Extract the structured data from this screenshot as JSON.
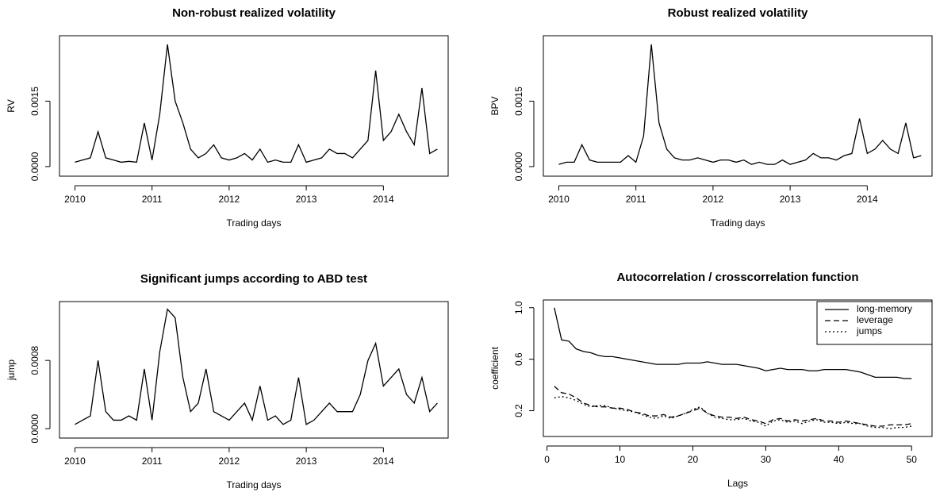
{
  "chart_data": [
    {
      "type": "line",
      "title": "Non-robust realized volatility",
      "xlabel": "Trading days",
      "ylabel": "RV",
      "x": [
        2010,
        2010.1,
        2010.2,
        2010.3,
        2010.4,
        2010.5,
        2010.6,
        2010.7,
        2010.8,
        2010.9,
        2011,
        2011.1,
        2011.2,
        2011.3,
        2011.4,
        2011.5,
        2011.6,
        2011.7,
        2011.8,
        2011.9,
        2012,
        2012.1,
        2012.2,
        2012.3,
        2012.4,
        2012.5,
        2012.6,
        2012.7,
        2012.8,
        2012.9,
        2013,
        2013.1,
        2013.2,
        2013.3,
        2013.4,
        2013.5,
        2013.6,
        2013.7,
        2013.8,
        2013.9,
        2014,
        2014.1,
        2014.2,
        2014.3,
        2014.4,
        2014.5,
        2014.6,
        2014.7
      ],
      "series": [
        {
          "color": "#000000",
          "dash": "solid",
          "values": [
            0.0001,
            0.00015,
            0.0002,
            0.0008,
            0.0002,
            0.00015,
            0.0001,
            0.00012,
            0.0001,
            0.001,
            0.00015,
            0.0012,
            0.0028,
            0.0015,
            0.001,
            0.0004,
            0.0002,
            0.0003,
            0.0005,
            0.0002,
            0.00015,
            0.0002,
            0.0003,
            0.00015,
            0.0004,
            0.0001,
            0.00015,
            0.0001,
            0.0001,
            0.0005,
            0.0001,
            0.00015,
            0.0002,
            0.0004,
            0.0003,
            0.0003,
            0.0002,
            0.0004,
            0.0006,
            0.0022,
            0.0006,
            0.0008,
            0.0012,
            0.0008,
            0.0005,
            0.0018,
            0.0003,
            0.0004
          ]
        }
      ],
      "xlim": [
        2009.8,
        2014.84
      ],
      "ylim": [
        -0.00022,
        0.003
      ],
      "xticks": [
        2010,
        2011,
        2012,
        2013,
        2014
      ],
      "yticks": [
        {
          "value": 0,
          "label": "0.0000"
        },
        {
          "value": 0.0015,
          "label": "0.0015"
        }
      ]
    },
    {
      "type": "line",
      "title": "Robust realized volatility",
      "xlabel": "Trading days",
      "ylabel": "BPV",
      "x": [
        2010,
        2010.1,
        2010.2,
        2010.3,
        2010.4,
        2010.5,
        2010.6,
        2010.7,
        2010.8,
        2010.9,
        2011,
        2011.1,
        2011.2,
        2011.3,
        2011.4,
        2011.5,
        2011.6,
        2011.7,
        2011.8,
        2011.9,
        2012,
        2012.1,
        2012.2,
        2012.3,
        2012.4,
        2012.5,
        2012.6,
        2012.7,
        2012.8,
        2012.9,
        2013,
        2013.1,
        2013.2,
        2013.3,
        2013.4,
        2013.5,
        2013.6,
        2013.7,
        2013.8,
        2013.9,
        2014,
        2014.1,
        2014.2,
        2014.3,
        2014.4,
        2014.5,
        2014.6,
        2014.7
      ],
      "series": [
        {
          "color": "#000000",
          "dash": "solid",
          "values": [
            5e-05,
            0.0001,
            0.0001,
            0.0005,
            0.00015,
            0.0001,
            0.0001,
            0.0001,
            0.0001,
            0.00025,
            0.0001,
            0.0007,
            0.0028,
            0.001,
            0.0004,
            0.0002,
            0.00015,
            0.00015,
            0.0002,
            0.00015,
            0.0001,
            0.00015,
            0.00015,
            0.0001,
            0.00015,
            5e-05,
            0.0001,
            5e-05,
            5e-05,
            0.00015,
            5e-05,
            0.0001,
            0.00015,
            0.0003,
            0.0002,
            0.0002,
            0.00015,
            0.00025,
            0.0003,
            0.0011,
            0.0003,
            0.0004,
            0.0006,
            0.0004,
            0.0003,
            0.001,
            0.0002,
            0.00025
          ]
        }
      ],
      "xlim": [
        2009.8,
        2014.84
      ],
      "ylim": [
        -0.00022,
        0.003
      ],
      "xticks": [
        2010,
        2011,
        2012,
        2013,
        2014
      ],
      "yticks": [
        {
          "value": 0,
          "label": "0.0000"
        },
        {
          "value": 0.0015,
          "label": "0.0015"
        }
      ]
    },
    {
      "type": "line",
      "title": "Significant jumps according to ABD test",
      "xlabel": "Trading days",
      "ylabel": "jump",
      "x": [
        2010,
        2010.1,
        2010.2,
        2010.3,
        2010.4,
        2010.5,
        2010.6,
        2010.7,
        2010.8,
        2010.9,
        2011,
        2011.1,
        2011.2,
        2011.3,
        2011.4,
        2011.5,
        2011.6,
        2011.7,
        2011.8,
        2011.9,
        2012,
        2012.1,
        2012.2,
        2012.3,
        2012.4,
        2012.5,
        2012.6,
        2012.7,
        2012.8,
        2012.9,
        2013,
        2013.1,
        2013.2,
        2013.3,
        2013.4,
        2013.5,
        2013.6,
        2013.7,
        2013.8,
        2013.9,
        2014,
        2014.1,
        2014.2,
        2014.3,
        2014.4,
        2014.5,
        2014.6,
        2014.7
      ],
      "series": [
        {
          "color": "#000000",
          "dash": "solid",
          "values": [
            5e-05,
            0.0001,
            0.00015,
            0.0008,
            0.0002,
            0.0001,
            0.0001,
            0.00015,
            0.0001,
            0.0007,
            0.0001,
            0.0009,
            0.0014,
            0.0013,
            0.0006,
            0.0002,
            0.0003,
            0.0007,
            0.0002,
            0.00015,
            0.0001,
            0.0002,
            0.0003,
            0.0001,
            0.0005,
            0.0001,
            0.00015,
            5e-05,
            0.0001,
            0.0006,
            5e-05,
            0.0001,
            0.0002,
            0.0003,
            0.0002,
            0.0002,
            0.0002,
            0.0004,
            0.0008,
            0.001,
            0.0005,
            0.0006,
            0.0007,
            0.0004,
            0.0003,
            0.0006,
            0.0002,
            0.0003
          ]
        }
      ],
      "xlim": [
        2009.8,
        2014.84
      ],
      "ylim": [
        -0.00011,
        0.00149
      ],
      "xticks": [
        2010,
        2011,
        2012,
        2013,
        2014
      ],
      "yticks": [
        {
          "value": 0,
          "label": "0.0000"
        },
        {
          "value": 0.0008,
          "label": "0.0008"
        }
      ]
    },
    {
      "type": "line",
      "title": "Autocorrelation / crosscorrelation function",
      "xlabel": "Lags",
      "ylabel": "coefficient",
      "x": [
        1,
        2,
        3,
        4,
        5,
        6,
        7,
        8,
        9,
        10,
        11,
        12,
        13,
        14,
        15,
        16,
        17,
        18,
        19,
        20,
        21,
        22,
        23,
        24,
        25,
        26,
        27,
        28,
        29,
        30,
        31,
        32,
        33,
        34,
        35,
        36,
        37,
        38,
        39,
        40,
        41,
        42,
        43,
        44,
        45,
        46,
        47,
        48,
        49,
        50
      ],
      "series": [
        {
          "name": "long-memory",
          "color": "#000000",
          "dash": "solid",
          "values": [
            1.0,
            0.75,
            0.74,
            0.68,
            0.66,
            0.65,
            0.63,
            0.62,
            0.62,
            0.61,
            0.6,
            0.59,
            0.58,
            0.57,
            0.56,
            0.56,
            0.56,
            0.56,
            0.57,
            0.57,
            0.57,
            0.58,
            0.57,
            0.56,
            0.56,
            0.56,
            0.55,
            0.54,
            0.53,
            0.51,
            0.52,
            0.53,
            0.52,
            0.52,
            0.52,
            0.51,
            0.51,
            0.52,
            0.52,
            0.52,
            0.52,
            0.51,
            0.5,
            0.48,
            0.46,
            0.46,
            0.46,
            0.46,
            0.45,
            0.45
          ]
        },
        {
          "name": "leverage",
          "color": "#000000",
          "dash": "dashed",
          "values": [
            0.39,
            0.34,
            0.33,
            0.3,
            0.26,
            0.24,
            0.23,
            0.23,
            0.22,
            0.22,
            0.21,
            0.19,
            0.18,
            0.16,
            0.16,
            0.17,
            0.15,
            0.16,
            0.18,
            0.2,
            0.22,
            0.18,
            0.16,
            0.15,
            0.15,
            0.14,
            0.15,
            0.13,
            0.12,
            0.1,
            0.13,
            0.14,
            0.12,
            0.13,
            0.12,
            0.13,
            0.14,
            0.12,
            0.12,
            0.11,
            0.12,
            0.11,
            0.1,
            0.09,
            0.08,
            0.08,
            0.09,
            0.09,
            0.09,
            0.1
          ]
        },
        {
          "name": "jumps",
          "color": "#000000",
          "dash": "dotted",
          "values": [
            0.3,
            0.31,
            0.3,
            0.28,
            0.25,
            0.23,
            0.24,
            0.24,
            0.22,
            0.21,
            0.2,
            0.19,
            0.17,
            0.15,
            0.14,
            0.16,
            0.14,
            0.16,
            0.18,
            0.21,
            0.23,
            0.18,
            0.15,
            0.14,
            0.13,
            0.13,
            0.14,
            0.12,
            0.11,
            0.08,
            0.12,
            0.13,
            0.11,
            0.12,
            0.1,
            0.12,
            0.13,
            0.11,
            0.11,
            0.1,
            0.11,
            0.1,
            0.1,
            0.08,
            0.07,
            0.07,
            0.06,
            0.07,
            0.07,
            0.08
          ]
        }
      ],
      "xlim": [
        -0.5,
        52.8
      ],
      "ylim": [
        0.0,
        1.06
      ],
      "xticks": [
        0,
        10,
        20,
        30,
        40,
        50
      ],
      "yticks": [
        0.2,
        0.6,
        {
          "value": 1,
          "label": "1.0"
        }
      ],
      "legend": "top-right"
    }
  ]
}
